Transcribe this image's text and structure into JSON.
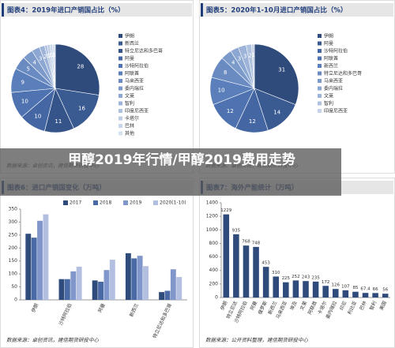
{
  "chart_data": [
    {
      "type": "pie",
      "title": "图表4：2019年进口产销国占比（%）",
      "categories": [
        "伊朗",
        "新西兰",
        "特立尼达和多巴哥",
        "阿曼",
        "沙特阿拉伯",
        "阿联酋",
        "马来西亚",
        "委内瑞拉",
        "文莱",
        "智利",
        "印度尼西亚",
        "卡塔尔",
        "巴林",
        "其他"
      ],
      "values": [
        28,
        16,
        11,
        10,
        10,
        9,
        5,
        4,
        3,
        2,
        1,
        1,
        1,
        1
      ],
      "colors": [
        "#2f4b7c",
        "#3a5a92",
        "#34548a",
        "#4467a3",
        "#4f73b0",
        "#5b7fba",
        "#6a8bc2",
        "#7b99c9",
        "#8ca7d1",
        "#9db4d8",
        "#aec1df",
        "#bccce5",
        "#cad7ea",
        "#d8e1ef"
      ],
      "source": "数据来源：卓创资讯，建信期货研投中心"
    },
    {
      "type": "pie",
      "title": "图表5：2020年1-10月进口产销国占比（%）",
      "categories": [
        "伊朗",
        "阿曼",
        "沙特阿拉伯",
        "阿联酋",
        "新西兰",
        "特立尼达和多巴哥",
        "马来西亚",
        "委内瑞拉",
        "文莱",
        "智利",
        "印度尼西亚"
      ],
      "values": [
        31,
        14,
        12,
        12,
        10,
        8,
        4,
        3,
        3,
        2,
        1
      ],
      "colors": [
        "#2f4b7c",
        "#3a5a92",
        "#4467a3",
        "#4f73b0",
        "#5b7fba",
        "#6a8bc2",
        "#7b99c9",
        "#8ca7d1",
        "#9db4d8",
        "#aec1df",
        "#c5d2e8"
      ],
      "source": "数据来源：卓创资讯，建信期货研投中心"
    },
    {
      "type": "grouped-bar",
      "title": "图表6：进口产销国变化（万吨）",
      "categories": [
        "伊朗",
        "沙特阿拉伯",
        "阿曼",
        "新西兰",
        "特立尼达和多巴哥"
      ],
      "series": [
        {
          "name": "2017",
          "color": "#2f4b7c",
          "values": [
            255,
            80,
            75,
            180,
            30
          ]
        },
        {
          "name": "2018",
          "color": "#4a6aa5",
          "values": [
            240,
            80,
            70,
            160,
            35
          ]
        },
        {
          "name": "2019",
          "color": "#8197cc",
          "values": [
            305,
            110,
            115,
            170,
            118
          ]
        },
        {
          "name": "2020(1-10)",
          "color": "#b3bfe0",
          "values": [
            330,
            128,
            155,
            130,
            88
          ]
        }
      ],
      "ylim": [
        0,
        350
      ],
      "yticks": [
        0,
        50,
        100,
        150,
        200,
        250,
        300,
        350
      ],
      "source": "数据来源：卓创资讯，建信期货研投中心"
    },
    {
      "type": "bar",
      "title": "图表7：海外产能统计（万吨）",
      "categories": [
        "伊朗",
        "特立尼达",
        "沙特阿拉伯",
        "阿曼",
        "俄罗斯",
        "新西兰",
        "马来西亚",
        "埃及",
        "文莱",
        "阿联酋",
        "卡塔尔",
        "委内瑞拉",
        "印尼",
        "利比亚",
        "巴林",
        "智利",
        "美国"
      ],
      "values": [
        1229,
        935,
        768,
        748,
        453,
        310,
        225,
        252,
        243,
        235,
        172,
        126,
        107,
        85,
        67.4,
        66,
        56
      ],
      "color": "#2f4b7c",
      "ylim": [
        0,
        1400
      ],
      "yticks": [
        0,
        200,
        400,
        600,
        800,
        1000,
        1200,
        1400
      ],
      "source": "数据来源：公开资料整理，建信期货研投中心"
    }
  ],
  "overlay": {
    "title": "甲醇2019年行情/甲醇2019费用走势"
  }
}
